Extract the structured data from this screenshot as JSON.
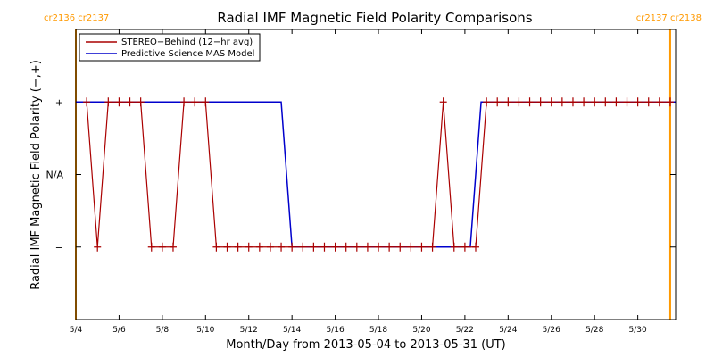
{
  "chart_data": {
    "type": "line",
    "title": "Radial IMF Magnetic Field Polarity Comparisons",
    "xlabel": "Month/Day from 2013-05-04 to 2013-05-31 (UT)",
    "ylabel": "Radial IMF Magnetic Field Polarity (−,+)",
    "x_unit": "date",
    "xlim": [
      "2013-05-04",
      "2013-05-31 18:00"
    ],
    "x_ticks": [
      {
        "date": "2013-05-04",
        "label": "5/4"
      },
      {
        "date": "2013-05-06",
        "label": "5/6"
      },
      {
        "date": "2013-05-08",
        "label": "5/8"
      },
      {
        "date": "2013-05-10",
        "label": "5/10"
      },
      {
        "date": "2013-05-12",
        "label": "5/12"
      },
      {
        "date": "2013-05-14",
        "label": "5/14"
      },
      {
        "date": "2013-05-16",
        "label": "5/16"
      },
      {
        "date": "2013-05-18",
        "label": "5/18"
      },
      {
        "date": "2013-05-20",
        "label": "5/20"
      },
      {
        "date": "2013-05-22",
        "label": "5/22"
      },
      {
        "date": "2013-05-24",
        "label": "5/24"
      },
      {
        "date": "2013-05-26",
        "label": "5/26"
      },
      {
        "date": "2013-05-28",
        "label": "5/28"
      },
      {
        "date": "2013-05-30",
        "label": "5/30"
      }
    ],
    "y_ticks": [
      {
        "value": 1,
        "label": "+"
      },
      {
        "value": 0,
        "label": "N/A"
      },
      {
        "value": -1,
        "label": "−"
      }
    ],
    "ylim": [
      -2,
      2
    ],
    "grid": false,
    "legend_position": "top-left",
    "series": [
      {
        "name": "STEREO−Behind (12−hr avg)",
        "color": "#aa0000",
        "marker": "plus",
        "x": [
          "2013-05-04 12:00",
          "2013-05-05 00:00",
          "2013-05-05 12:00",
          "2013-05-06 00:00",
          "2013-05-06 12:00",
          "2013-05-07 00:00",
          "2013-05-07 12:00",
          "2013-05-08 00:00",
          "2013-05-08 12:00",
          "2013-05-09 00:00",
          "2013-05-09 12:00",
          "2013-05-10 00:00",
          "2013-05-10 12:00",
          "2013-05-11 00:00",
          "2013-05-11 12:00",
          "2013-05-12 00:00",
          "2013-05-12 12:00",
          "2013-05-13 00:00",
          "2013-05-13 12:00",
          "2013-05-14 00:00",
          "2013-05-14 12:00",
          "2013-05-15 00:00",
          "2013-05-15 12:00",
          "2013-05-16 00:00",
          "2013-05-16 12:00",
          "2013-05-17 00:00",
          "2013-05-17 12:00",
          "2013-05-18 00:00",
          "2013-05-18 12:00",
          "2013-05-19 00:00",
          "2013-05-19 12:00",
          "2013-05-20 00:00",
          "2013-05-20 12:00",
          "2013-05-21 00:00",
          "2013-05-21 12:00",
          "2013-05-22 00:00",
          "2013-05-22 12:00",
          "2013-05-23 00:00",
          "2013-05-23 12:00",
          "2013-05-24 00:00",
          "2013-05-24 12:00",
          "2013-05-25 00:00",
          "2013-05-25 12:00",
          "2013-05-26 00:00",
          "2013-05-26 12:00",
          "2013-05-27 00:00",
          "2013-05-27 12:00",
          "2013-05-28 00:00",
          "2013-05-28 12:00",
          "2013-05-29 00:00",
          "2013-05-29 12:00",
          "2013-05-30 00:00",
          "2013-05-30 12:00",
          "2013-05-31 00:00",
          "2013-05-31 12:00"
        ],
        "values": [
          1,
          -1,
          1,
          1,
          1,
          1,
          -1,
          -1,
          -1,
          1,
          1,
          1,
          -1,
          -1,
          -1,
          -1,
          -1,
          -1,
          -1,
          -1,
          -1,
          -1,
          -1,
          -1,
          -1,
          -1,
          -1,
          -1,
          -1,
          -1,
          -1,
          -1,
          -1,
          1,
          -1,
          -1,
          -1,
          1,
          1,
          1,
          1,
          1,
          1,
          1,
          1,
          1,
          1,
          1,
          1,
          1,
          1,
          1,
          1,
          1,
          1
        ]
      },
      {
        "name": "Predictive Science MAS Model",
        "color": "#0000cc",
        "x": [
          "2013-05-04 00:00",
          "2013-05-13 12:00",
          "2013-05-14 00:00",
          "2013-05-22 06:00",
          "2013-05-22 18:00",
          "2013-05-31 18:00"
        ],
        "values": [
          1,
          1,
          -1,
          -1,
          1,
          1
        ]
      }
    ],
    "vertical_markers": [
      {
        "date": "2013-05-04 00:00",
        "color": "#ff9900",
        "label": "cr2136 cr2137"
      },
      {
        "date": "2013-05-31 12:00",
        "color": "#ff9900",
        "label": "cr2137 cr2138"
      }
    ]
  },
  "colors": {
    "axis": "#000000",
    "marker_line": "#ff9900",
    "marker_label": "#ff9900"
  }
}
